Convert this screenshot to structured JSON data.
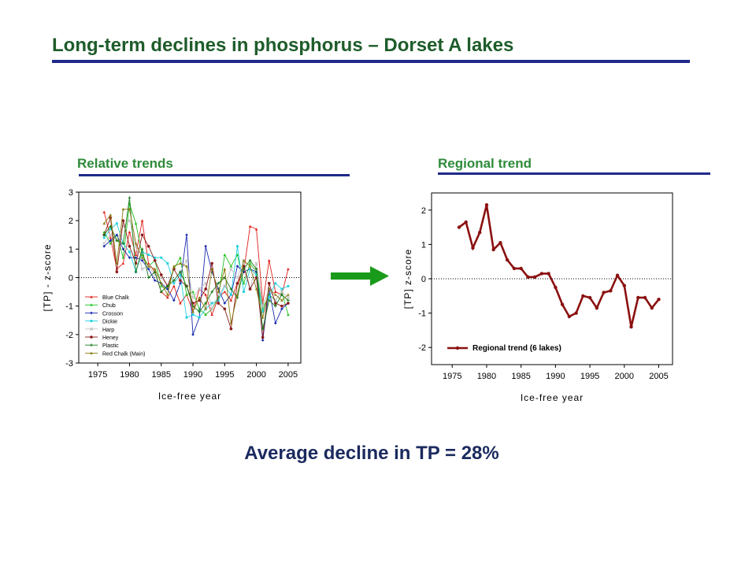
{
  "slide": {
    "title": "Long-term declines in phosphorus – Dorset A lakes",
    "left_heading": "Relative trends",
    "right_heading": "Regional trend",
    "summary": "Average decline in TP = 28%",
    "arrow_icon": "right-arrow-icon"
  },
  "colors": {
    "title": "#1e5c2a",
    "heading": "#2e8b3a",
    "rule": "#1f2a8a",
    "arrow": "#1a9a1a",
    "regional": "#8b1010"
  },
  "chart_data": [
    {
      "type": "line",
      "title": "",
      "xlabel": "Ice-free year",
      "ylabel": "[TP] - z-score",
      "xlim": [
        1972,
        2007
      ],
      "ylim": [
        -3,
        3
      ],
      "xticks": [
        1975,
        1980,
        1985,
        1990,
        1995,
        2000,
        2005
      ],
      "yticks": [
        -3,
        -2,
        -1,
        0,
        1,
        2,
        3
      ],
      "zero_line": "dotted",
      "legend": "lower-left",
      "x": [
        1976,
        1977,
        1978,
        1979,
        1980,
        1981,
        1982,
        1983,
        1984,
        1985,
        1986,
        1987,
        1988,
        1989,
        1990,
        1991,
        1992,
        1993,
        1994,
        1995,
        1996,
        1997,
        1998,
        1999,
        2000,
        2001,
        2002,
        2003,
        2004,
        2005
      ],
      "series": [
        {
          "name": "Blue Chalk",
          "color": "#e0201a",
          "marker": "triangle",
          "values": [
            2.3,
            1.4,
            0.3,
            0.5,
            1.6,
            0.8,
            2.0,
            0.5,
            0.2,
            -0.5,
            -0.7,
            -0.3,
            -0.9,
            -0.6,
            -1.2,
            -0.4,
            -0.6,
            -1.3,
            -0.7,
            -0.5,
            -0.8,
            -0.2,
            0.2,
            1.8,
            1.7,
            -0.9,
            0.6,
            -0.5,
            -0.6,
            0.3
          ]
        },
        {
          "name": "Chub",
          "color": "#20c020",
          "marker": "triangle",
          "values": [
            1.6,
            1.2,
            1.5,
            0.7,
            2.6,
            1.9,
            0.8,
            0.4,
            0.6,
            -0.3,
            -0.4,
            0.3,
            0.7,
            -0.6,
            -0.5,
            -1.1,
            -1.3,
            -1.1,
            -0.7,
            0.8,
            0.4,
            0.8,
            -0.2,
            0.5,
            0.2,
            -1.1,
            -0.6,
            -0.8,
            -0.5,
            -1.3
          ]
        },
        {
          "name": "Crosson",
          "color": "#1a2ab0",
          "marker": "diamond",
          "values": [
            1.1,
            1.3,
            1.5,
            1.0,
            0.7,
            0.7,
            0.6,
            0.3,
            -0.1,
            -0.2,
            -0.4,
            -0.8,
            -0.2,
            1.5,
            -2.0,
            -1.4,
            1.1,
            0.2,
            -0.4,
            -0.9,
            -0.6,
            0.4,
            0.2,
            0.3,
            0.2,
            -2.2,
            -0.4,
            -1.6,
            -1.1,
            -0.9
          ]
        },
        {
          "name": "Dickie",
          "color": "#20d0e0",
          "marker": "square",
          "values": [
            1.4,
            1.7,
            1.9,
            1.2,
            0.9,
            0.2,
            0.9,
            0.8,
            0.7,
            0.7,
            0.5,
            -0.2,
            0.1,
            -1.4,
            -1.3,
            -1.4,
            -1.1,
            -0.9,
            -0.8,
            -0.3,
            -0.6,
            1.1,
            -0.5,
            0.3,
            0.1,
            -1.2,
            -0.7,
            -0.2,
            -0.4,
            -0.3
          ]
        },
        {
          "name": "Harp",
          "color": "#c0c0c0",
          "marker": "x",
          "values": [
            1.2,
            1.5,
            1.3,
            1.8,
            2.0,
            1.1,
            0.3,
            0.4,
            0.1,
            0.0,
            -0.3,
            -0.1,
            0.2,
            0.6,
            -0.7,
            -0.4,
            -0.2,
            -1.1,
            -0.6,
            -0.3,
            0.3,
            0.0,
            0.6,
            -0.4,
            0.5,
            -1.0,
            -0.4,
            -0.8,
            -0.5,
            -0.7
          ]
        },
        {
          "name": "Heney",
          "color": "#8b1a1a",
          "marker": "circle",
          "values": [
            1.5,
            2.1,
            0.2,
            2.0,
            1.1,
            0.5,
            1.5,
            1.1,
            0.6,
            0.1,
            -0.3,
            0.3,
            -0.1,
            -0.3,
            -0.9,
            -0.8,
            -0.4,
            0.5,
            -0.9,
            -1.1,
            -1.8,
            -0.2,
            0.4,
            -0.4,
            0.0,
            -2.1,
            -0.2,
            -0.9,
            -1.0,
            -0.9
          ]
        },
        {
          "name": "Plastic",
          "color": "#1a7a1a",
          "marker": "plus",
          "values": [
            1.5,
            1.8,
            1.3,
            1.2,
            2.8,
            0.2,
            1.0,
            0.0,
            0.2,
            -0.5,
            -0.3,
            -0.1,
            0.2,
            -0.3,
            -1.0,
            -1.2,
            -0.9,
            -0.5,
            -0.2,
            0.0,
            -0.4,
            -0.7,
            0.3,
            0.6,
            0.3,
            -1.8,
            -0.8,
            -1.0,
            -0.6,
            -0.8
          ]
        },
        {
          "name": "Red Chalk (Main)",
          "color": "#8a7a10",
          "marker": "triangle",
          "values": [
            1.9,
            2.2,
            0.5,
            2.4,
            2.4,
            1.2,
            0.7,
            0.4,
            0.3,
            -0.2,
            -0.6,
            0.4,
            0.5,
            0.4,
            -1.2,
            -0.7,
            -1.1,
            0.3,
            -0.5,
            0.3,
            -1.6,
            -0.6,
            0.6,
            0.4,
            -0.4,
            -1.4,
            -0.4,
            -0.6,
            -0.8,
            -0.6
          ]
        }
      ]
    },
    {
      "type": "line",
      "title": "",
      "xlabel": "Ice-free year",
      "ylabel": "[TP] z-score",
      "xlim": [
        1972,
        2007
      ],
      "ylim": [
        -2.5,
        2.5
      ],
      "xticks": [
        1975,
        1980,
        1985,
        1990,
        1995,
        2000,
        2005
      ],
      "yticks": [
        -2,
        -1,
        0,
        1,
        2
      ],
      "zero_line": "dotted",
      "legend": "lower-left",
      "x": [
        1976,
        1977,
        1978,
        1979,
        1980,
        1981,
        1982,
        1983,
        1984,
        1985,
        1986,
        1987,
        1988,
        1989,
        1990,
        1991,
        1992,
        1993,
        1994,
        1995,
        1996,
        1997,
        1998,
        1999,
        2000,
        2001,
        2002,
        2003,
        2004,
        2005
      ],
      "series": [
        {
          "name": "Regional trend (6 lakes)",
          "color": "#8b1010",
          "marker": "circle",
          "values": [
            1.5,
            1.65,
            0.9,
            1.35,
            2.15,
            0.85,
            1.05,
            0.55,
            0.3,
            0.3,
            0.05,
            0.05,
            0.15,
            0.15,
            -0.25,
            -0.75,
            -1.1,
            -1.0,
            -0.5,
            -0.55,
            -0.85,
            -0.4,
            -0.35,
            0.1,
            -0.2,
            -1.4,
            -0.55,
            -0.55,
            -0.85,
            -0.6
          ]
        }
      ]
    }
  ]
}
